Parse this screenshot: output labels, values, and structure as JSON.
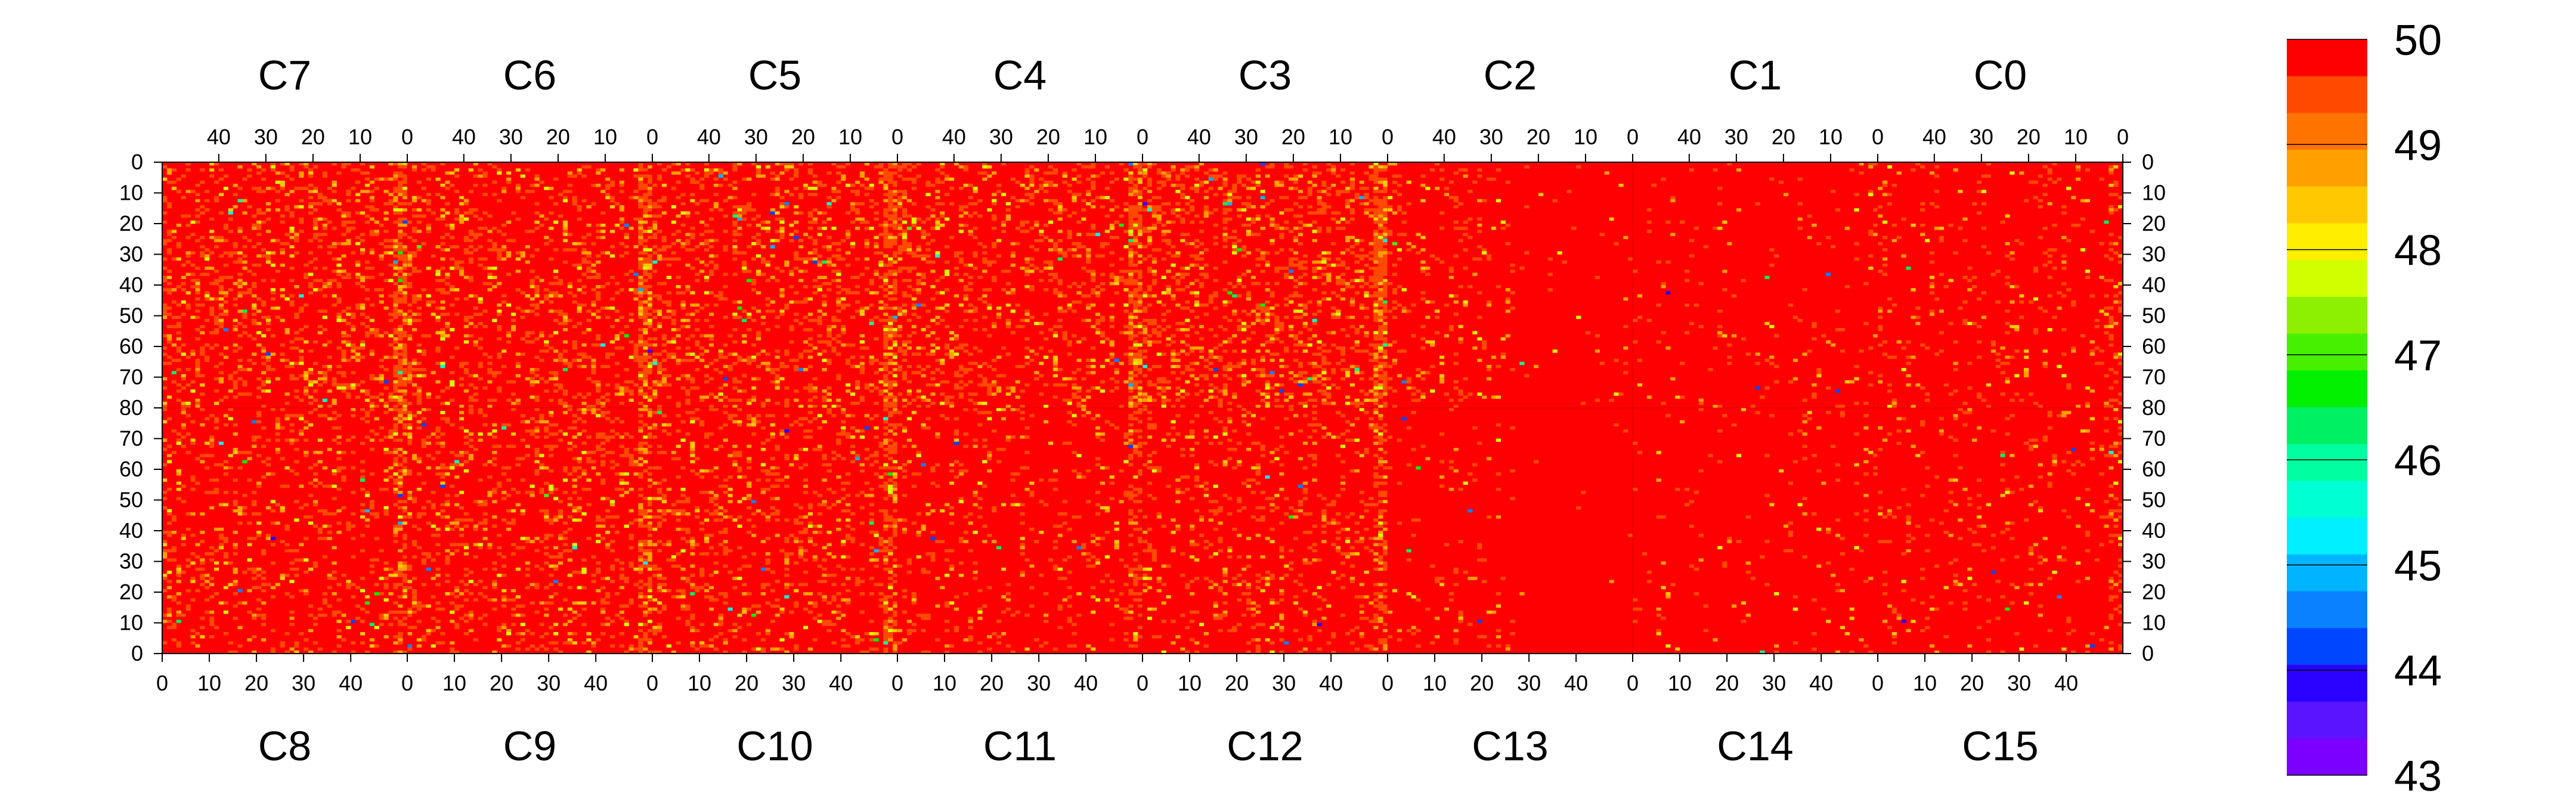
{
  "chart_data": {
    "type": "heatmap",
    "title": "",
    "xlabel": "",
    "ylabel": "",
    "grid": false,
    "chip_labels_top": [
      "C7",
      "C6",
      "C5",
      "C4",
      "C3",
      "C2",
      "C1",
      "C0"
    ],
    "chip_labels_bottom": [
      "C8",
      "C9",
      "C10",
      "C11",
      "C12",
      "C13",
      "C14",
      "C15"
    ],
    "top_x_ticks": [
      "40",
      "30",
      "20",
      "10",
      "0"
    ],
    "bottom_x_ticks": [
      "0",
      "10",
      "20",
      "30",
      "40"
    ],
    "y_ticks_top_half": [
      "0",
      "10",
      "20",
      "30",
      "40",
      "50",
      "60",
      "70",
      "80"
    ],
    "y_ticks_bottom_half": [
      "70",
      "60",
      "50",
      "40",
      "30",
      "20",
      "10",
      "0"
    ],
    "columns_per_chip": 52,
    "rows_per_half": 80,
    "zlim": [
      43,
      50
    ],
    "z_ticks": [
      "50",
      "49",
      "48",
      "47",
      "46",
      "45",
      "44",
      "43"
    ],
    "palette": [
      "#7b00ff",
      "#5a14ff",
      "#2a00ff",
      "#0046ff",
      "#0a82ff",
      "#00b4ff",
      "#00f0ff",
      "#00ffd2",
      "#00ffa0",
      "#00f064",
      "#00f000",
      "#46f000",
      "#8cf000",
      "#d2ff00",
      "#ffee00",
      "#ffc800",
      "#ffa000",
      "#ff7300",
      "#ff4a00",
      "#ff0000"
    ],
    "base_value": 50,
    "dominant_color": "#ff0000",
    "noisy_columns_note_free": true
  }
}
